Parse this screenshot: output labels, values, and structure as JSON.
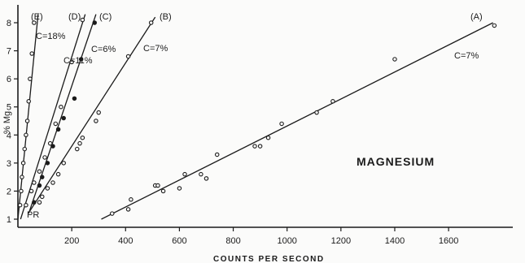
{
  "chart_data": {
    "type": "scatter",
    "title": "MAGNESIUM",
    "xlabel": "COUNTS PER SECOND",
    "ylabel": "% Mg",
    "xlim": [
      0,
      1800
    ],
    "ylim": [
      0,
      8.5
    ],
    "x_ticks": [
      200,
      400,
      600,
      800,
      1000,
      1200,
      1400,
      1600
    ],
    "y_ticks": [
      1,
      2,
      3,
      4,
      5,
      6,
      7,
      8
    ],
    "grid": false,
    "annotations": [
      "PR"
    ],
    "series": [
      {
        "name": "(A)",
        "concentration_label": "C=7%",
        "marker": "open",
        "line": [
          [
            310,
            1.0
          ],
          [
            1765,
            8.0
          ]
        ],
        "points": [
          [
            350,
            1.2
          ],
          [
            410,
            1.35
          ],
          [
            420,
            1.7
          ],
          [
            510,
            2.2
          ],
          [
            520,
            2.2
          ],
          [
            540,
            2.0
          ],
          [
            600,
            2.1
          ],
          [
            620,
            2.6
          ],
          [
            680,
            2.6
          ],
          [
            700,
            2.45
          ],
          [
            740,
            3.3
          ],
          [
            880,
            3.6
          ],
          [
            900,
            3.6
          ],
          [
            930,
            3.9
          ],
          [
            980,
            4.4
          ],
          [
            1110,
            4.8
          ],
          [
            1170,
            5.2
          ],
          [
            1400,
            6.7
          ],
          [
            1770,
            7.9
          ]
        ]
      },
      {
        "name": "(B)",
        "concentration_label": "C=7%",
        "marker": "open",
        "line": [
          [
            45,
            1.3
          ],
          [
            510,
            8.2
          ]
        ],
        "points": [
          [
            80,
            1.6
          ],
          [
            90,
            1.8
          ],
          [
            110,
            2.1
          ],
          [
            130,
            2.3
          ],
          [
            150,
            2.6
          ],
          [
            170,
            3.0
          ],
          [
            220,
            3.5
          ],
          [
            230,
            3.7
          ],
          [
            240,
            3.9
          ],
          [
            290,
            4.5
          ],
          [
            300,
            4.8
          ],
          [
            410,
            6.8
          ],
          [
            495,
            8.0
          ]
        ]
      },
      {
        "name": "(C)",
        "concentration_label": "C=6%",
        "marker": "filled",
        "line": [
          [
            40,
            1.2
          ],
          [
            290,
            8.3
          ]
        ],
        "points": [
          [
            60,
            1.6
          ],
          [
            80,
            2.2
          ],
          [
            90,
            2.5
          ],
          [
            110,
            3.0
          ],
          [
            130,
            3.6
          ],
          [
            150,
            4.2
          ],
          [
            170,
            4.6
          ],
          [
            210,
            5.3
          ],
          [
            235,
            6.7
          ],
          [
            285,
            8.0
          ]
        ]
      },
      {
        "name": "(D)",
        "concentration_label": "C=11%",
        "marker": "open",
        "line": [
          [
            10,
            1.0
          ],
          [
            250,
            8.3
          ]
        ],
        "points": [
          [
            30,
            1.5
          ],
          [
            50,
            2.0
          ],
          [
            60,
            2.3
          ],
          [
            80,
            2.7
          ],
          [
            100,
            3.2
          ],
          [
            120,
            3.7
          ],
          [
            140,
            4.4
          ],
          [
            160,
            5.0
          ],
          [
            200,
            6.6
          ],
          [
            240,
            8.1
          ]
        ]
      },
      {
        "name": "(E)",
        "concentration_label": "C=18%",
        "marker": "open",
        "line": [
          [
            0,
            1.0
          ],
          [
            75,
            8.3
          ]
        ],
        "points": [
          [
            8,
            1.5
          ],
          [
            12,
            2.0
          ],
          [
            15,
            2.5
          ],
          [
            20,
            3.0
          ],
          [
            25,
            3.5
          ],
          [
            30,
            4.0
          ],
          [
            35,
            4.5
          ],
          [
            40,
            5.2
          ],
          [
            45,
            6.0
          ],
          [
            52,
            6.9
          ],
          [
            60,
            8.0
          ]
        ]
      }
    ]
  }
}
